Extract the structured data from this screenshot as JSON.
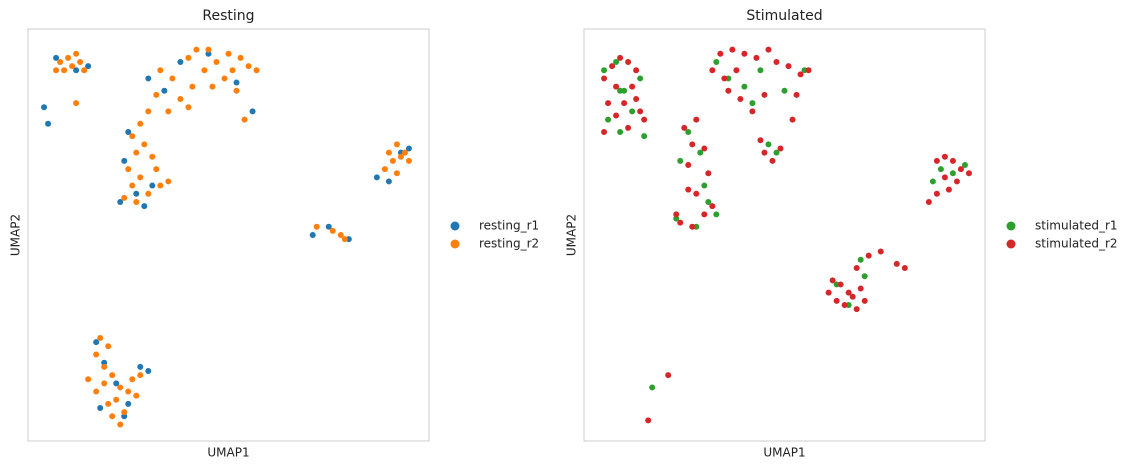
{
  "chart_data": [
    {
      "type": "scatter",
      "title": "Resting",
      "x_label": "UMAP1",
      "y_label": "UMAP2",
      "xlim": [
        0,
        100
      ],
      "ylim": [
        0,
        100
      ],
      "grid": false,
      "legend": "right",
      "series": [
        {
          "name": "resting_r1",
          "color": "#1f77b4",
          "x": [
            7,
            12,
            15,
            4,
            5,
            30,
            34,
            38,
            45,
            52,
            56,
            25,
            24,
            27,
            23,
            29,
            31,
            90,
            93,
            95,
            87,
            71,
            75,
            80,
            17,
            19,
            22,
            25,
            28,
            30,
            18,
            24
          ],
          "y": [
            93,
            90,
            91,
            81,
            77,
            88,
            85,
            92,
            94,
            87,
            80,
            75,
            68,
            60,
            58,
            57,
            62,
            63,
            70,
            71,
            64,
            50,
            52,
            49,
            24,
            19,
            14,
            9,
            18,
            17,
            8,
            6
          ]
        },
        {
          "name": "resting_r2",
          "color": "#ff7f0e",
          "x": [
            8,
            10,
            11,
            13,
            14,
            9,
            12,
            7,
            12,
            33,
            36,
            40,
            42,
            44,
            47,
            50,
            53,
            55,
            57,
            49,
            46,
            41,
            38,
            35,
            40,
            52,
            54,
            51,
            45,
            32,
            30,
            28,
            26,
            29,
            27,
            31,
            25,
            28,
            32,
            26,
            30,
            33,
            24,
            27,
            35,
            89,
            91,
            93,
            92,
            94,
            90,
            95,
            92,
            76,
            78,
            79,
            72,
            18,
            20,
            17,
            19,
            21,
            23,
            25,
            22,
            27,
            24,
            20,
            17,
            26,
            28,
            19,
            23,
            21,
            15
          ],
          "y": [
            92,
            93,
            91,
            92,
            90,
            90,
            94,
            90,
            82,
            90,
            88,
            93,
            95,
            90,
            92,
            94,
            93,
            91,
            90,
            88,
            86,
            86,
            83,
            80,
            81,
            85,
            78,
            90,
            95,
            84,
            80,
            77,
            74,
            72,
            70,
            69,
            66,
            64,
            66,
            62,
            60,
            62,
            59,
            58,
            63,
            66,
            68,
            69,
            72,
            70,
            70,
            68,
            65,
            51,
            50,
            49,
            52,
            25,
            23,
            21,
            18,
            16,
            13,
            12,
            10,
            11,
            7,
            9,
            12,
            15,
            16,
            14,
            4,
            6,
            15
          ]
        }
      ]
    },
    {
      "type": "scatter",
      "title": "Stimulated",
      "x_label": "UMAP1",
      "y_label": "UMAP2",
      "xlim": [
        0,
        100
      ],
      "ylim": [
        0,
        100
      ],
      "grid": false,
      "legend": "right",
      "series": [
        {
          "name": "stimulated_r1",
          "color": "#2ca02c",
          "x": [
            5,
            8,
            10,
            12,
            6,
            15,
            9,
            14,
            36,
            40,
            44,
            50,
            55,
            33,
            26,
            29,
            24,
            30,
            33,
            23,
            28,
            46,
            48,
            87,
            89,
            92,
            95,
            63,
            66,
            70,
            69,
            17,
            9,
            42,
            31
          ],
          "y": [
            90,
            92,
            85,
            80,
            78,
            74,
            75,
            88,
            88,
            86,
            90,
            85,
            90,
            92,
            75,
            70,
            68,
            62,
            55,
            54,
            52,
            72,
            70,
            63,
            66,
            65,
            67,
            38,
            33,
            40,
            44,
            13,
            85,
            82,
            58
          ]
        },
        {
          "name": "stimulated_r2",
          "color": "#d62728",
          "x": [
            5,
            7,
            9,
            11,
            13,
            8,
            12,
            10,
            6,
            14,
            8,
            11,
            5,
            13,
            15,
            32,
            34,
            37,
            40,
            43,
            46,
            48,
            51,
            54,
            56,
            36,
            39,
            42,
            45,
            38,
            35,
            53,
            52,
            25,
            28,
            27,
            30,
            26,
            31,
            28,
            32,
            24,
            27,
            30,
            23,
            26,
            45,
            47,
            49,
            44,
            88,
            90,
            92,
            94,
            96,
            93,
            91,
            88,
            86,
            90,
            61,
            63,
            65,
            67,
            69,
            64,
            62,
            68,
            66,
            70,
            68,
            71,
            74,
            78,
            80,
            16,
            21
          ],
          "y": [
            88,
            91,
            93,
            92,
            90,
            86,
            86,
            82,
            82,
            80,
            79,
            76,
            75,
            83,
            78,
            90,
            94,
            95,
            94,
            93,
            95,
            92,
            91,
            89,
            90,
            85,
            83,
            80,
            84,
            90,
            88,
            84,
            78,
            76,
            78,
            72,
            71,
            67,
            65,
            60,
            57,
            53,
            52,
            55,
            55,
            61,
            70,
            68,
            71,
            73,
            68,
            69,
            68,
            66,
            65,
            63,
            61,
            60,
            58,
            64,
            36,
            34,
            33,
            35,
            37,
            38,
            39,
            32,
            36,
            34,
            42,
            45,
            46,
            43,
            42,
            5,
            16
          ]
        }
      ]
    }
  ]
}
